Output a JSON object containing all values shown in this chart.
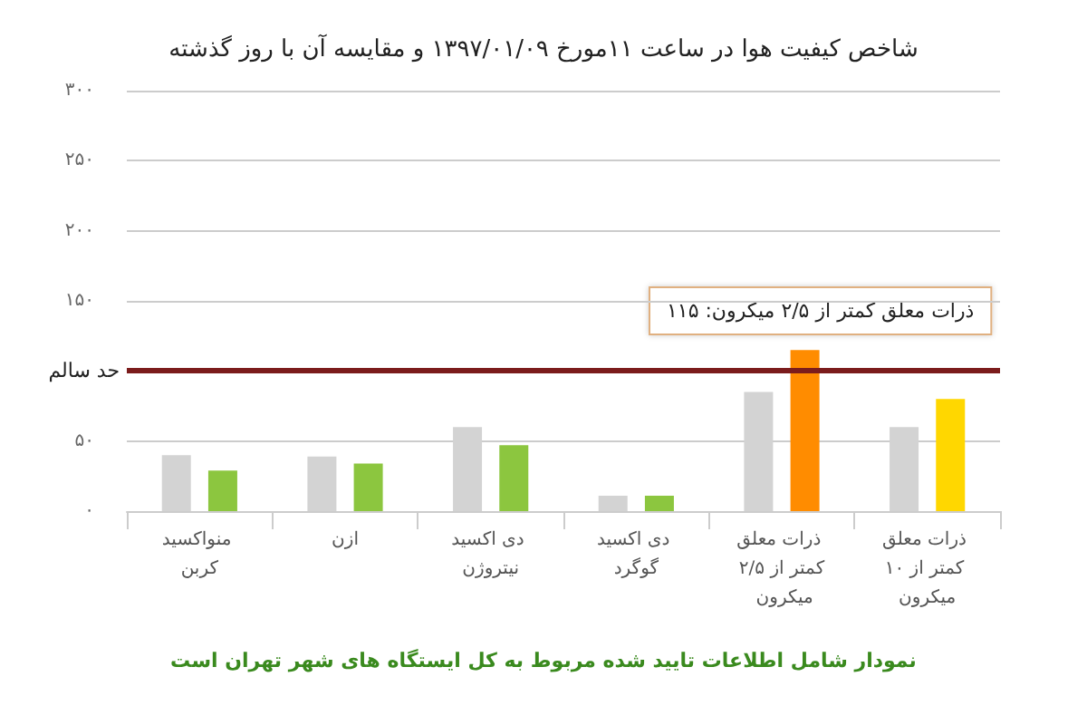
{
  "chart_data": {
    "type": "bar",
    "title": "شاخص کیفیت هوا در ساعت ۱۱مورخ ۱۳۹۷/۰۱/۰۹ و مقایسه آن با روز گذشته",
    "categories": [
      "منواکسید کربن",
      "ازن",
      "دی اکسید نیتروژن",
      "دی اکسید گوگرد",
      "ذرات معلق کمتر از ۲/۵ میکرون",
      "ذرات معلق کمتر از ۱۰ میکرون"
    ],
    "series": [
      {
        "color": "#d3d3d3",
        "values": [
          40,
          39,
          60,
          11,
          85,
          60
        ]
      },
      {
        "color": "#8cc63f",
        "colors": [
          "#8cc63f",
          "#8cc63f",
          "#8cc63f",
          "#8cc63f",
          "#ff8c00",
          "#ffd700"
        ],
        "values": [
          29,
          34,
          47,
          11,
          115,
          80
        ]
      }
    ],
    "ylim": [
      0,
      300
    ],
    "yticks": [
      {
        "value": 0,
        "label": "۰"
      },
      {
        "value": 50,
        "label": "۵۰"
      },
      {
        "value": 100,
        "label": null
      },
      {
        "value": 150,
        "label": "۱۵۰"
      },
      {
        "value": 200,
        "label": "۲۰۰"
      },
      {
        "value": 250,
        "label": "۲۵۰"
      },
      {
        "value": 300,
        "label": "۳۰۰"
      }
    ],
    "grid": "y",
    "ref_lines": [
      {
        "axis": "y",
        "value": 100,
        "label": "حد سالم",
        "color": "#7b1c1c"
      }
    ],
    "annotations": [
      "ذرات معلق کمتر از ۲/۵ میکرون: ۱۱۵",
      "نمودار شامل اطلاعات تایید شده مربوط به کل ایستگاه های شهر تهران است"
    ]
  }
}
